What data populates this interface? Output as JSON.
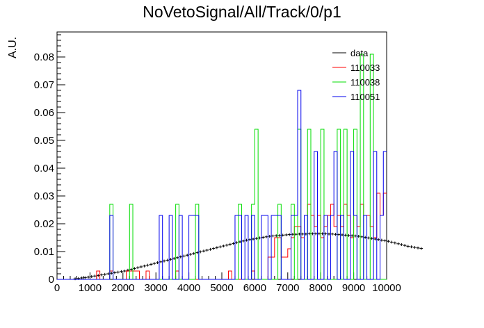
{
  "chart_data": {
    "type": "line",
    "title": "NoVetoSignal/All/Track/0/p1",
    "xlabel": "",
    "ylabel": "A.U.",
    "xlim": [
      0,
      10000
    ],
    "ylim": [
      0,
      0.089
    ],
    "x_ticks": [
      "0",
      "1000",
      "2000",
      "3000",
      "4000",
      "5000",
      "6000",
      "7000",
      "8000",
      "9000",
      "10000"
    ],
    "y_ticks": [
      "0",
      "0.01",
      "0.02",
      "0.03",
      "0.04",
      "0.05",
      "0.06",
      "0.07",
      "0.08"
    ],
    "bin_width": 100,
    "legend_placement": "top-right",
    "series": [
      {
        "name": "data",
        "color": "#000000",
        "style": "error-points",
        "x_start": 500,
        "x_step": 100,
        "values": [
          0.0002,
          0.0003,
          0.0005,
          0.0006,
          0.0008,
          0.001,
          0.0012,
          0.0014,
          0.0016,
          0.0018,
          0.002,
          0.0022,
          0.0024,
          0.0026,
          0.0028,
          0.003,
          0.0033,
          0.0036,
          0.0039,
          0.0042,
          0.0045,
          0.0048,
          0.0051,
          0.0054,
          0.0057,
          0.006,
          0.0063,
          0.0066,
          0.0069,
          0.0072,
          0.0075,
          0.0078,
          0.0081,
          0.0084,
          0.0087,
          0.009,
          0.0093,
          0.0096,
          0.0099,
          0.0102,
          0.0105,
          0.0108,
          0.0111,
          0.0114,
          0.0117,
          0.012,
          0.0123,
          0.0126,
          0.0129,
          0.0132,
          0.0135,
          0.0138,
          0.0141,
          0.0143,
          0.0145,
          0.0147,
          0.0149,
          0.0151,
          0.0153,
          0.0155,
          0.0156,
          0.0157,
          0.0158,
          0.0159,
          0.016,
          0.0161,
          0.0162,
          0.0162,
          0.0163,
          0.0163,
          0.0163,
          0.0164,
          0.0164,
          0.0164,
          0.0164,
          0.0164,
          0.0164,
          0.0163,
          0.0163,
          0.0162,
          0.0161,
          0.016,
          0.0159,
          0.0158,
          0.0157,
          0.0156,
          0.0155,
          0.0153,
          0.0151,
          0.0149,
          0.0147,
          0.0145,
          0.0143,
          0.0141,
          0.0139,
          0.0137,
          0.0134,
          0.0131,
          0.0128,
          0.0125,
          0.0122,
          0.0119,
          0.0117,
          0.0115,
          0.0113,
          0.0111
        ]
      },
      {
        "name": "110033",
        "color": "#ff0000",
        "style": "histogram",
        "x_start": 0,
        "x_step": 100,
        "values": [
          0,
          0,
          0,
          0,
          0,
          0,
          0,
          0,
          0,
          0,
          0,
          0,
          0.003,
          0,
          0,
          0,
          0.003,
          0,
          0,
          0,
          0,
          0.003,
          0.003,
          0.003,
          0.003,
          0,
          0,
          0.003,
          0,
          0,
          0,
          0,
          0,
          0,
          0,
          0,
          0.003,
          0,
          0,
          0,
          0,
          0,
          0,
          0,
          0,
          0,
          0,
          0,
          0,
          0,
          0,
          0,
          0.003,
          0,
          0,
          0,
          0,
          0,
          0,
          0.003,
          0,
          0,
          0,
          0,
          0.008,
          0.008,
          0.015,
          0.015,
          0.008,
          0.008,
          0.011,
          0.015,
          0.019,
          0.019,
          0.015,
          0.023,
          0.027,
          0.023,
          0.019,
          0.023,
          0.015,
          0.019,
          0.023,
          0.027,
          0.019,
          0.023,
          0.019,
          0.027,
          0.023,
          0.015,
          0.023,
          0.019,
          0.027,
          0.023,
          0.023,
          0.019,
          0.015,
          0.031,
          0.023,
          0.031
        ]
      },
      {
        "name": "110038",
        "color": "#00dd00",
        "style": "histogram",
        "x_start": 0,
        "x_step": 100,
        "values": [
          0,
          0,
          0,
          0,
          0,
          0,
          0,
          0,
          0,
          0,
          0,
          0,
          0,
          0,
          0,
          0,
          0.027,
          0,
          0,
          0,
          0,
          0,
          0.027,
          0,
          0,
          0,
          0,
          0,
          0,
          0,
          0,
          0,
          0,
          0,
          0,
          0,
          0.027,
          0,
          0,
          0,
          0,
          0,
          0.027,
          0,
          0,
          0,
          0,
          0,
          0,
          0,
          0,
          0,
          0,
          0,
          0,
          0.027,
          0,
          0,
          0,
          0.027,
          0.054,
          0,
          0,
          0,
          0,
          0,
          0,
          0.027,
          0,
          0,
          0,
          0.027,
          0,
          0.054,
          0,
          0,
          0.054,
          0,
          0,
          0,
          0.054,
          0,
          0,
          0,
          0,
          0.054,
          0,
          0.054,
          0,
          0,
          0.054,
          0,
          0.081,
          0,
          0,
          0.081,
          0,
          0,
          0,
          0
        ]
      },
      {
        "name": "110051",
        "color": "#0000ee",
        "style": "histogram",
        "x_start": 0,
        "x_step": 100,
        "values": [
          0,
          0,
          0,
          0,
          0,
          0,
          0,
          0,
          0,
          0,
          0,
          0,
          0,
          0,
          0,
          0,
          0.023,
          0,
          0,
          0,
          0,
          0,
          0,
          0,
          0,
          0,
          0,
          0,
          0,
          0,
          0,
          0.023,
          0,
          0,
          0.023,
          0,
          0,
          0.023,
          0,
          0,
          0.023,
          0.023,
          0.023,
          0,
          0,
          0,
          0,
          0,
          0,
          0,
          0,
          0,
          0,
          0,
          0.023,
          0.023,
          0,
          0.023,
          0,
          0.023,
          0,
          0,
          0.023,
          0.023,
          0,
          0.023,
          0.023,
          0.023,
          0,
          0,
          0,
          0.023,
          0.023,
          0.068,
          0,
          0.023,
          0,
          0,
          0.046,
          0,
          0,
          0.023,
          0,
          0.023,
          0.046,
          0,
          0.023,
          0,
          0,
          0.046,
          0.023,
          0,
          0,
          0.023,
          0,
          0,
          0.046,
          0,
          0.023,
          0.046
        ]
      }
    ]
  }
}
